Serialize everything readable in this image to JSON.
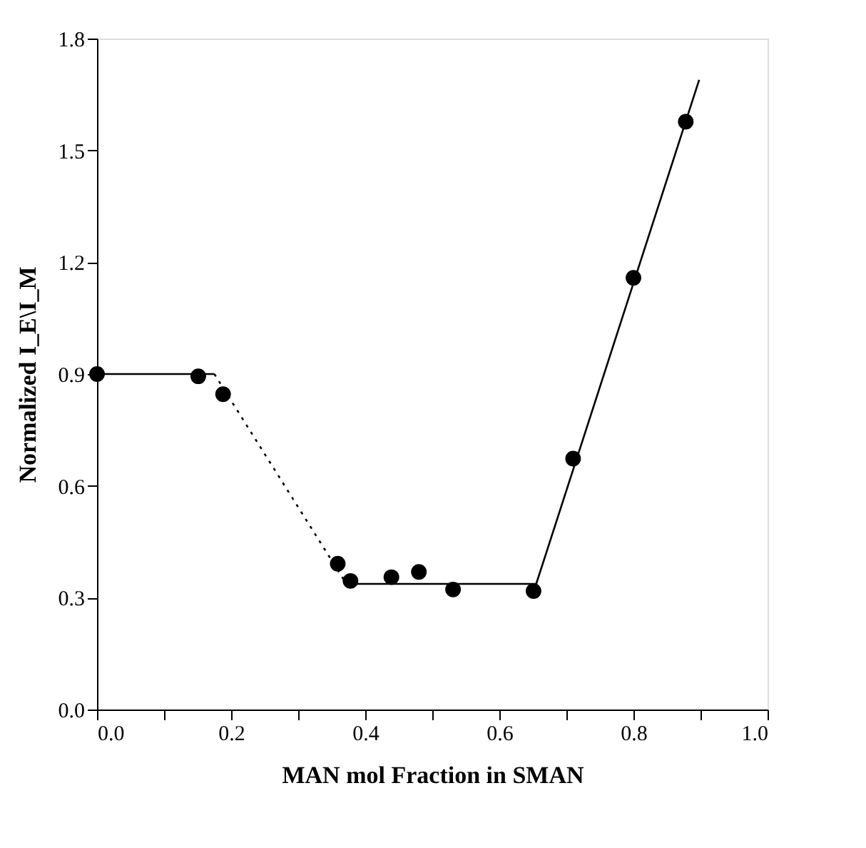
{
  "chart_data": {
    "type": "scatter",
    "xlabel": "MAN mol Fraction in SMAN",
    "ylabel": "Normalized I_E\\I_M",
    "xlim": [
      0,
      1
    ],
    "ylim": [
      0,
      1.8
    ],
    "xticks": [
      {
        "value": 0,
        "label": "0.0"
      },
      {
        "value": 0.1,
        "label": null
      },
      0.2,
      {
        "value": 0.3,
        "label": null
      },
      0.4,
      {
        "value": 0.5,
        "label": null
      },
      0.6,
      {
        "value": 0.7,
        "label": null
      },
      0.8,
      {
        "value": 0.9,
        "label": null
      },
      {
        "value": 1,
        "label": "1.0"
      }
    ],
    "yticks": [
      {
        "value": 0,
        "label": "0.0"
      },
      0.3,
      0.6,
      0.9,
      1.2,
      1.5,
      1.8
    ],
    "grid": false,
    "series": [
      {
        "type": "scatter",
        "color": "#000000",
        "marker": "circle",
        "x": [
          0.0,
          0.151,
          0.188,
          0.359,
          0.378,
          0.439,
          0.48,
          0.531,
          0.651,
          0.71,
          0.8,
          0.878
        ],
        "values": [
          0.9,
          0.894,
          0.846,
          0.391,
          0.345,
          0.355,
          0.369,
          0.322,
          0.318,
          0.673,
          1.158,
          1.577
        ]
      },
      {
        "type": "line",
        "color": "#000000",
        "line_style": "solid",
        "x": [
          0.0,
          0.175
        ],
        "values": [
          0.9,
          0.9
        ]
      },
      {
        "type": "line",
        "color": "#000000",
        "line_style": "dotted",
        "x": [
          0.175,
          0.372
        ],
        "values": [
          0.9,
          0.337
        ]
      },
      {
        "type": "line",
        "color": "#000000",
        "line_style": "solid",
        "x": [
          0.372,
          0.655,
          0.898
        ],
        "values": [
          0.337,
          0.337,
          1.689
        ]
      }
    ]
  }
}
